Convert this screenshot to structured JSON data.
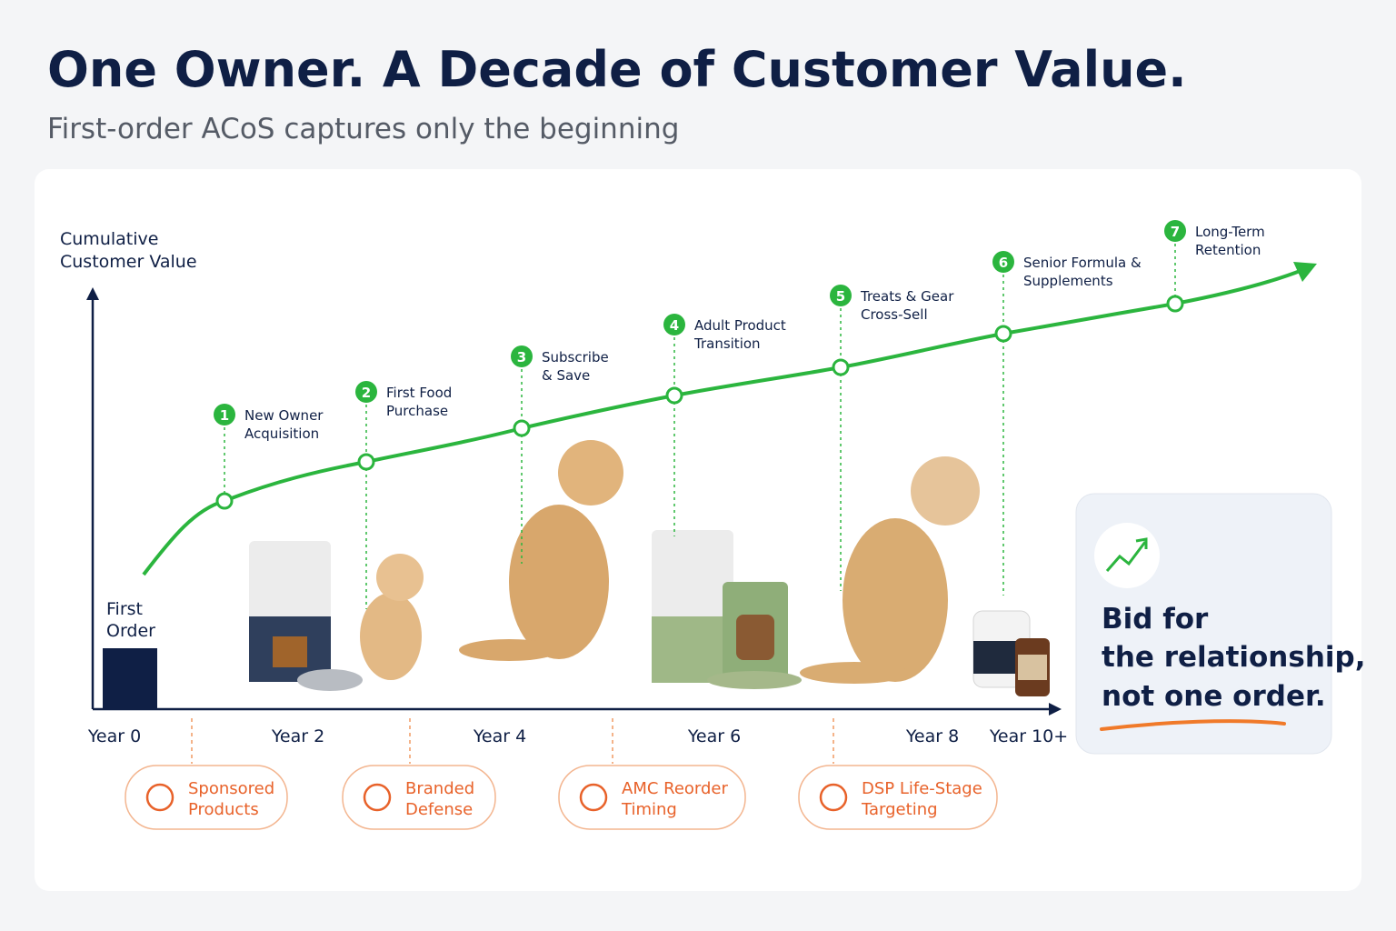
{
  "header": {
    "title": "One Owner. A Decade of Customer Value.",
    "subtitle": "First-order ACoS captures only the beginning"
  },
  "axis": {
    "y_label": [
      "Cumulative",
      "Customer Value"
    ],
    "x_labels": [
      "Year 0",
      "Year 2",
      "Year 4",
      "Year 6",
      "Year 8",
      "Year 10+"
    ]
  },
  "first_order": [
    "First",
    "Order"
  ],
  "milestones": [
    {
      "number": "1",
      "label": [
        "New Owner",
        "Acquisition"
      ]
    },
    {
      "number": "2",
      "label": [
        "First Food",
        "Purchase"
      ]
    },
    {
      "number": "3",
      "label": [
        "Subscribe",
        "& Save"
      ]
    },
    {
      "number": "4",
      "label": [
        "Adult Product",
        "Transition"
      ]
    },
    {
      "number": "5",
      "label": [
        "Treats & Gear",
        "Cross-Sell"
      ]
    },
    {
      "number": "6",
      "label": [
        "Senior Formula &",
        "Supplements"
      ]
    },
    {
      "number": "7",
      "label": [
        "Long-Term",
        "Retention"
      ]
    }
  ],
  "tactics": [
    {
      "label": [
        "Sponsored",
        "Products"
      ]
    },
    {
      "label": [
        "Branded",
        "Defense"
      ]
    },
    {
      "label": [
        "AMC Reorder",
        "Timing"
      ]
    },
    {
      "label": [
        "DSP Life-Stage",
        "Targeting"
      ]
    }
  ],
  "callout": [
    "Bid for",
    "the relationship,",
    "not one order."
  ]
}
